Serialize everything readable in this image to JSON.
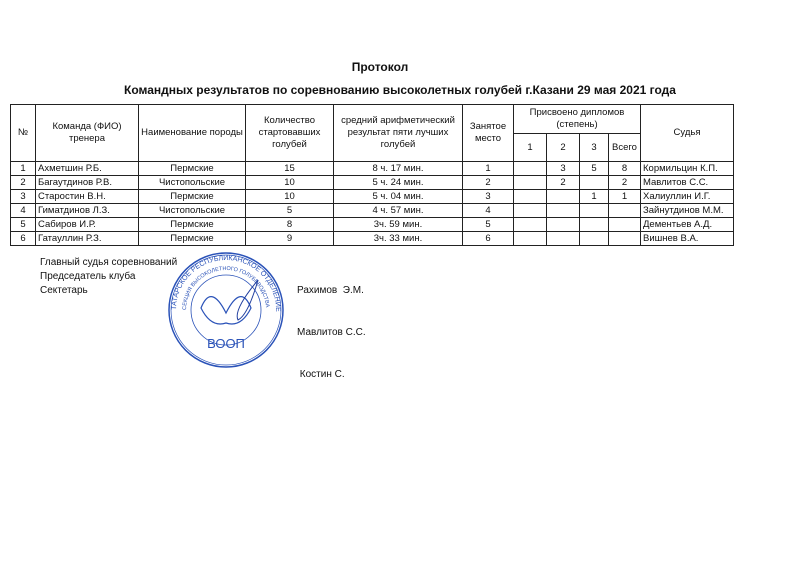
{
  "title": "Протокол",
  "subtitle": "Командных результатов по соревнованию  высоколетных голубей г.Казани  29 мая  2021 года",
  "table": {
    "headers": {
      "num": "№",
      "team": "Команда (ФИО) тренера",
      "breed": "Наименование породы",
      "count": "Количество стартовавших голубей",
      "avg": "средний арифметический результат пяти лучших голубей",
      "place": "Занятое место",
      "diplomas": "Присвоено дипломов (степень)",
      "d1": "1",
      "d2": "2",
      "d3": "3",
      "total": "Всего",
      "judge": "Судья"
    },
    "rows": [
      {
        "num": "1",
        "team": "Ахметшин Р.Б.",
        "breed": "Пермские",
        "count": "15",
        "avg": "8 ч. 17 мин.",
        "place": "1",
        "d1": "",
        "d2": "3",
        "d3": "5",
        "total": "8",
        "judge": "Кормильцин К.П."
      },
      {
        "num": "2",
        "team": "Багаутдинов Р.В.",
        "breed": "Чистопольские",
        "count": "10",
        "avg": "5 ч. 24 мин.",
        "place": "2",
        "d1": "",
        "d2": "2",
        "d3": "",
        "total": "2",
        "judge": "Мавлитов С.С."
      },
      {
        "num": "3",
        "team": "Старостин В.Н.",
        "breed": "Пермские",
        "count": "10",
        "avg": "5 ч. 04 мин.",
        "place": "3",
        "d1": "",
        "d2": "",
        "d3": "1",
        "total": "1",
        "judge": "Халиуллин И.Г."
      },
      {
        "num": "4",
        "team": "Гиматдинов Л.З.",
        "breed": "Чистопольские",
        "count": "5",
        "avg": "4 ч. 57 мин.",
        "place": "4",
        "d1": "",
        "d2": "",
        "d3": "",
        "total": "",
        "judge": "Зайнутдинов М.М."
      },
      {
        "num": "5",
        "team": "Сабиров И.Р.",
        "breed": "Пермские",
        "count": "8",
        "avg": "3ч. 59 мин.",
        "place": "5",
        "d1": "",
        "d2": "",
        "d3": "",
        "total": "",
        "judge": "Дементьев А.Д."
      },
      {
        "num": "6",
        "team": "Гатауллин Р.З.",
        "breed": "Пермские",
        "count": "9",
        "avg": "3ч. 33 мин.",
        "place": "6",
        "d1": "",
        "d2": "",
        "d3": "",
        "total": "",
        "judge": "Вишнев В.А."
      }
    ]
  },
  "signatures": [
    {
      "role": "Главный судья соревнований",
      "name": "Рахимов  Э.М."
    },
    {
      "role": "Председатель клуба",
      "name": "Мавлитов С.С."
    },
    {
      "role": "Сектетарь",
      "name": " Костин С."
    }
  ],
  "stamp": {
    "outer_text": "ТАТАРСКОЕ РЕСПУБЛИКАНСКОЕ ОТДЕЛЕНИЕ",
    "inner_text": "СЕКЦИЯ ВЫСОКОЛЕТНОГО ГОЛУБЕВОДСТВА",
    "center_text": "ВООП",
    "color": "#2a52b8"
  }
}
